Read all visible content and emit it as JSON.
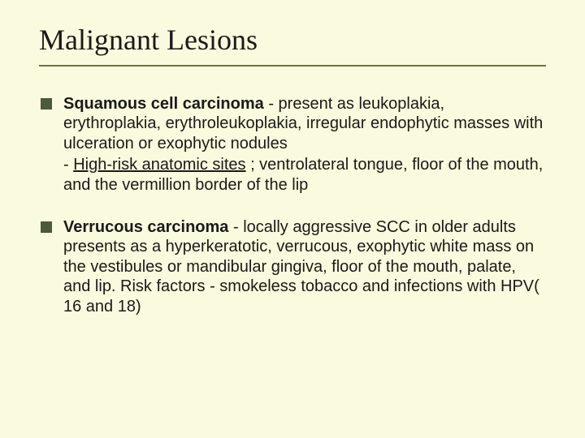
{
  "slide": {
    "title": "Malignant Lesions",
    "title_fontsize": 36,
    "title_font": "Times New Roman",
    "underline_color": "#707048",
    "background_color": "#fafade",
    "text_color": "#1a1a1a",
    "bullet_color": "#4a5a3a",
    "body_font": "Arial",
    "body_fontsize": 20,
    "bullets": [
      {
        "lead": "Squamous cell carcinoma",
        "rest": " - present as leukoplakia, erythroplakia, erythroleukoplakia, irregular endophytic masses with ulceration or exophytic nodules",
        "sub_prefix": "- ",
        "sub_underlined": "High-risk anatomic sites",
        "sub_rest": " ; ventrolateral tongue, floor of the mouth, and the vermillion border of the lip"
      },
      {
        "lead": "Verrucous carcinoma",
        "rest": " - locally aggressive SCC in older adults presents as a hyperkeratotic, verrucous, exophytic white mass on the vestibules or mandibular gingiva, floor of the mouth, palate, and lip. Risk factors - smokeless tobacco and infections with HPV( 16 and 18)",
        "sub_prefix": "",
        "sub_underlined": "",
        "sub_rest": ""
      }
    ]
  }
}
